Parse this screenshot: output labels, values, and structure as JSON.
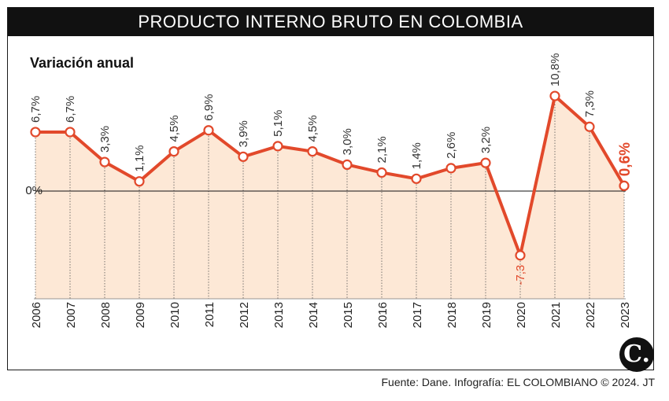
{
  "header": {
    "title": "PRODUCTO INTERNO BRUTO EN COLOMBIA"
  },
  "footer": {
    "source": "Fuente: Dane. Infografía: EL COLOMBIANO © 2024. JT"
  },
  "logo": {
    "letter": "C."
  },
  "colors": {
    "line": "#e2492b",
    "fill": "#fde8d6",
    "highlight": "#e2492b",
    "text": "#222222"
  },
  "chart_data": {
    "type": "line",
    "title": "Variación anual",
    "zero_label": "0%",
    "categories": [
      "2006",
      "2007",
      "2008",
      "2009",
      "2010",
      "2011",
      "2012",
      "2013",
      "2014",
      "2015",
      "2016",
      "2017",
      "2018",
      "2019",
      "2020",
      "2021",
      "2022",
      "2023"
    ],
    "series": [
      {
        "values": [
          6.7,
          6.7,
          3.3,
          1.1,
          4.5,
          6.9,
          3.9,
          5.1,
          4.5,
          3.0,
          2.1,
          1.4,
          2.6,
          3.2,
          -7.3,
          10.8,
          7.3,
          0.6
        ],
        "labels": [
          "6,7%",
          "6,7%",
          "3,3%",
          "1,1%",
          "4,5%",
          "6,9%",
          "3,9%",
          "5,1%",
          "4,5%",
          "3,0%",
          "2,1%",
          "1,4%",
          "2,6%",
          "3,2%",
          "-7,3",
          "10,8%",
          "7,3%",
          "0,6%"
        ]
      }
    ],
    "grid": "dotted vertical lines per year",
    "area_fill": true
  }
}
